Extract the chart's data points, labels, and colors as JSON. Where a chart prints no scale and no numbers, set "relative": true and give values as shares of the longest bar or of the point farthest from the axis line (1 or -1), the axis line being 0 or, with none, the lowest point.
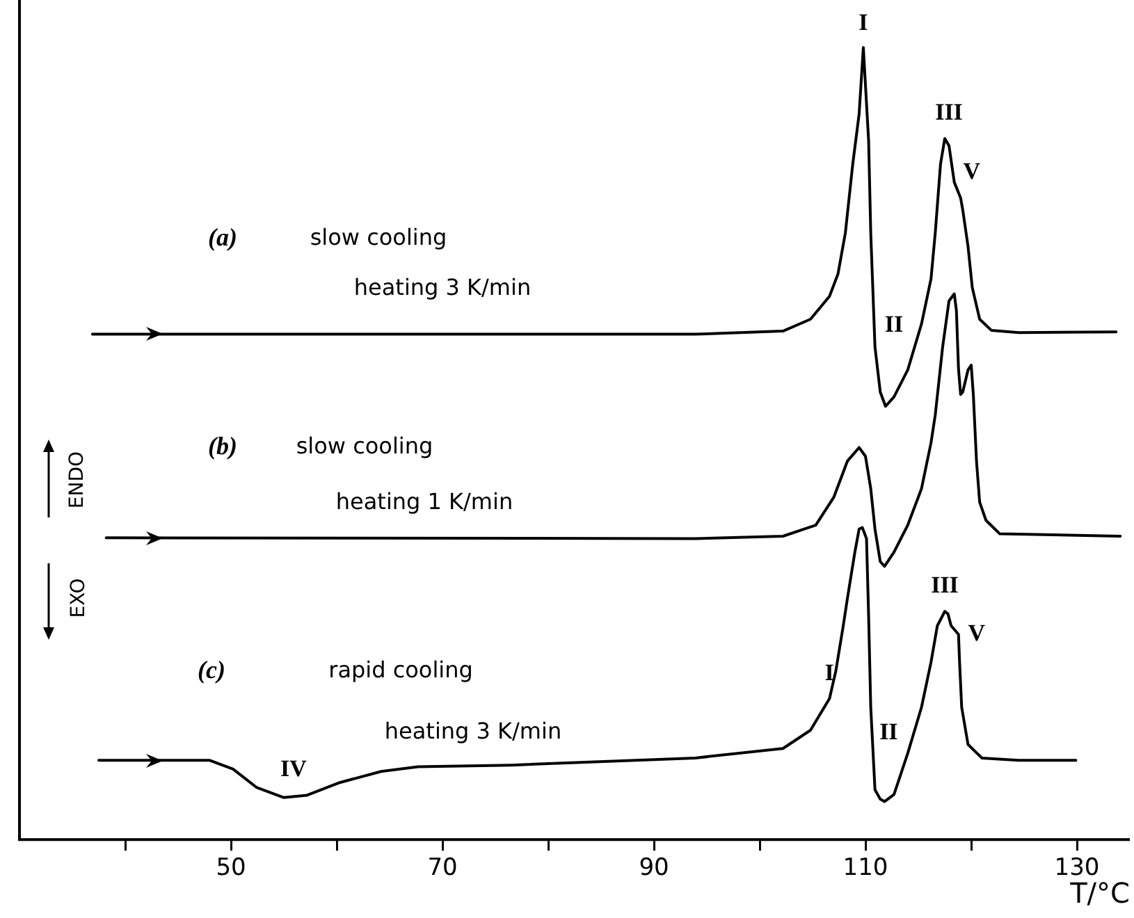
{
  "chart_data": {
    "type": "line",
    "relative": true,
    "xlabel": "T/°C",
    "xlim": [
      30,
      135
    ],
    "xticks": [
      {
        "value": 40,
        "label": null
      },
      50,
      {
        "value": 60,
        "label": null
      },
      70,
      {
        "value": 80,
        "label": null
      },
      90,
      {
        "value": 100,
        "label": null
      },
      110,
      {
        "value": 120,
        "label": null
      },
      130
    ],
    "series": [
      {
        "color": "#000000",
        "x": [
          36.9,
          93.9,
          102.2,
          104.8,
          106.6,
          107.4,
          108.1,
          108.8,
          109.4,
          109.8,
          110.3,
          110.5,
          110.9,
          111.4,
          111.9,
          112.7,
          114.0,
          115.3,
          116.2,
          116.6,
          117.1,
          117.5,
          117.9,
          118.4,
          119.0,
          119.2,
          119.7,
          120.1,
          120.8,
          121.9,
          124.5,
          133.7
        ],
        "values": [
          0.638,
          0.638,
          0.642,
          0.657,
          0.686,
          0.714,
          0.766,
          0.853,
          0.916,
          1.0,
          0.882,
          0.766,
          0.622,
          0.565,
          0.547,
          0.559,
          0.593,
          0.651,
          0.708,
          0.766,
          0.853,
          0.885,
          0.876,
          0.83,
          0.81,
          0.795,
          0.749,
          0.697,
          0.657,
          0.643,
          0.64,
          0.641
        ]
      },
      {
        "color": "#000000",
        "x": [
          38.2,
          93.9,
          102.2,
          105.3,
          107.0,
          108.3,
          109.4,
          110.0,
          110.5,
          110.9,
          111.4,
          111.8,
          112.7,
          114.0,
          115.3,
          116.2,
          116.6,
          117.3,
          117.9,
          118.4,
          118.6,
          118.8,
          119.0,
          119.2,
          119.7,
          120.0,
          120.2,
          120.5,
          120.8,
          121.4,
          122.7,
          134.1
        ],
        "values": [
          0.381,
          0.38,
          0.383,
          0.397,
          0.432,
          0.478,
          0.495,
          0.484,
          0.443,
          0.392,
          0.351,
          0.345,
          0.363,
          0.397,
          0.443,
          0.501,
          0.536,
          0.622,
          0.68,
          0.689,
          0.668,
          0.594,
          0.562,
          0.565,
          0.593,
          0.599,
          0.562,
          0.478,
          0.426,
          0.403,
          0.386,
          0.383
        ]
      },
      {
        "color": "#000000",
        "x": [
          37.5,
          48.0,
          50.2,
          52.4,
          55.0,
          57.2,
          60.3,
          64.2,
          67.7,
          76.5,
          93.9,
          102.2,
          104.8,
          106.6,
          107.2,
          107.9,
          108.3,
          109.0,
          109.4,
          109.7,
          110.1,
          110.3,
          110.5,
          110.9,
          111.4,
          111.8,
          112.7,
          114.0,
          115.3,
          116.2,
          116.8,
          117.5,
          117.8,
          118.1,
          118.8,
          118.9,
          119.1,
          119.7,
          121.0,
          124.5,
          129.9
        ],
        "values": [
          0.1,
          0.1,
          0.089,
          0.066,
          0.053,
          0.056,
          0.072,
          0.086,
          0.092,
          0.094,
          0.103,
          0.115,
          0.138,
          0.178,
          0.213,
          0.27,
          0.305,
          0.363,
          0.392,
          0.394,
          0.38,
          0.282,
          0.167,
          0.063,
          0.051,
          0.048,
          0.057,
          0.109,
          0.167,
          0.224,
          0.27,
          0.288,
          0.285,
          0.27,
          0.259,
          0.224,
          0.167,
          0.12,
          0.103,
          0.1,
          0.1
        ]
      }
    ],
    "annotations": [
      "(a)",
      "slow cooling",
      "heating 3 K/min",
      "(b)",
      "slow cooling",
      "heating 1 K/min",
      "(c)",
      "rapid cooling",
      "heating 3 K/min",
      "ENDO",
      "EXO",
      {
        "text": "I",
        "x": 109.8,
        "y": 1.0
      },
      {
        "text": "II",
        "x": 111.9,
        "y": 0.547
      },
      {
        "text": "III",
        "x": 117.5,
        "y": 0.885
      },
      {
        "text": "V",
        "x": 119.0,
        "y": 0.81
      },
      {
        "text": "I",
        "x": 107.9,
        "y": 0.27
      },
      {
        "text": "II",
        "x": 111.8,
        "y": 0.048
      },
      {
        "text": "III",
        "x": 117.5,
        "y": 0.288
      },
      {
        "text": "V",
        "x": 118.8,
        "y": 0.259
      },
      {
        "text": "IV",
        "x": 55.0,
        "y": 0.053
      }
    ]
  }
}
